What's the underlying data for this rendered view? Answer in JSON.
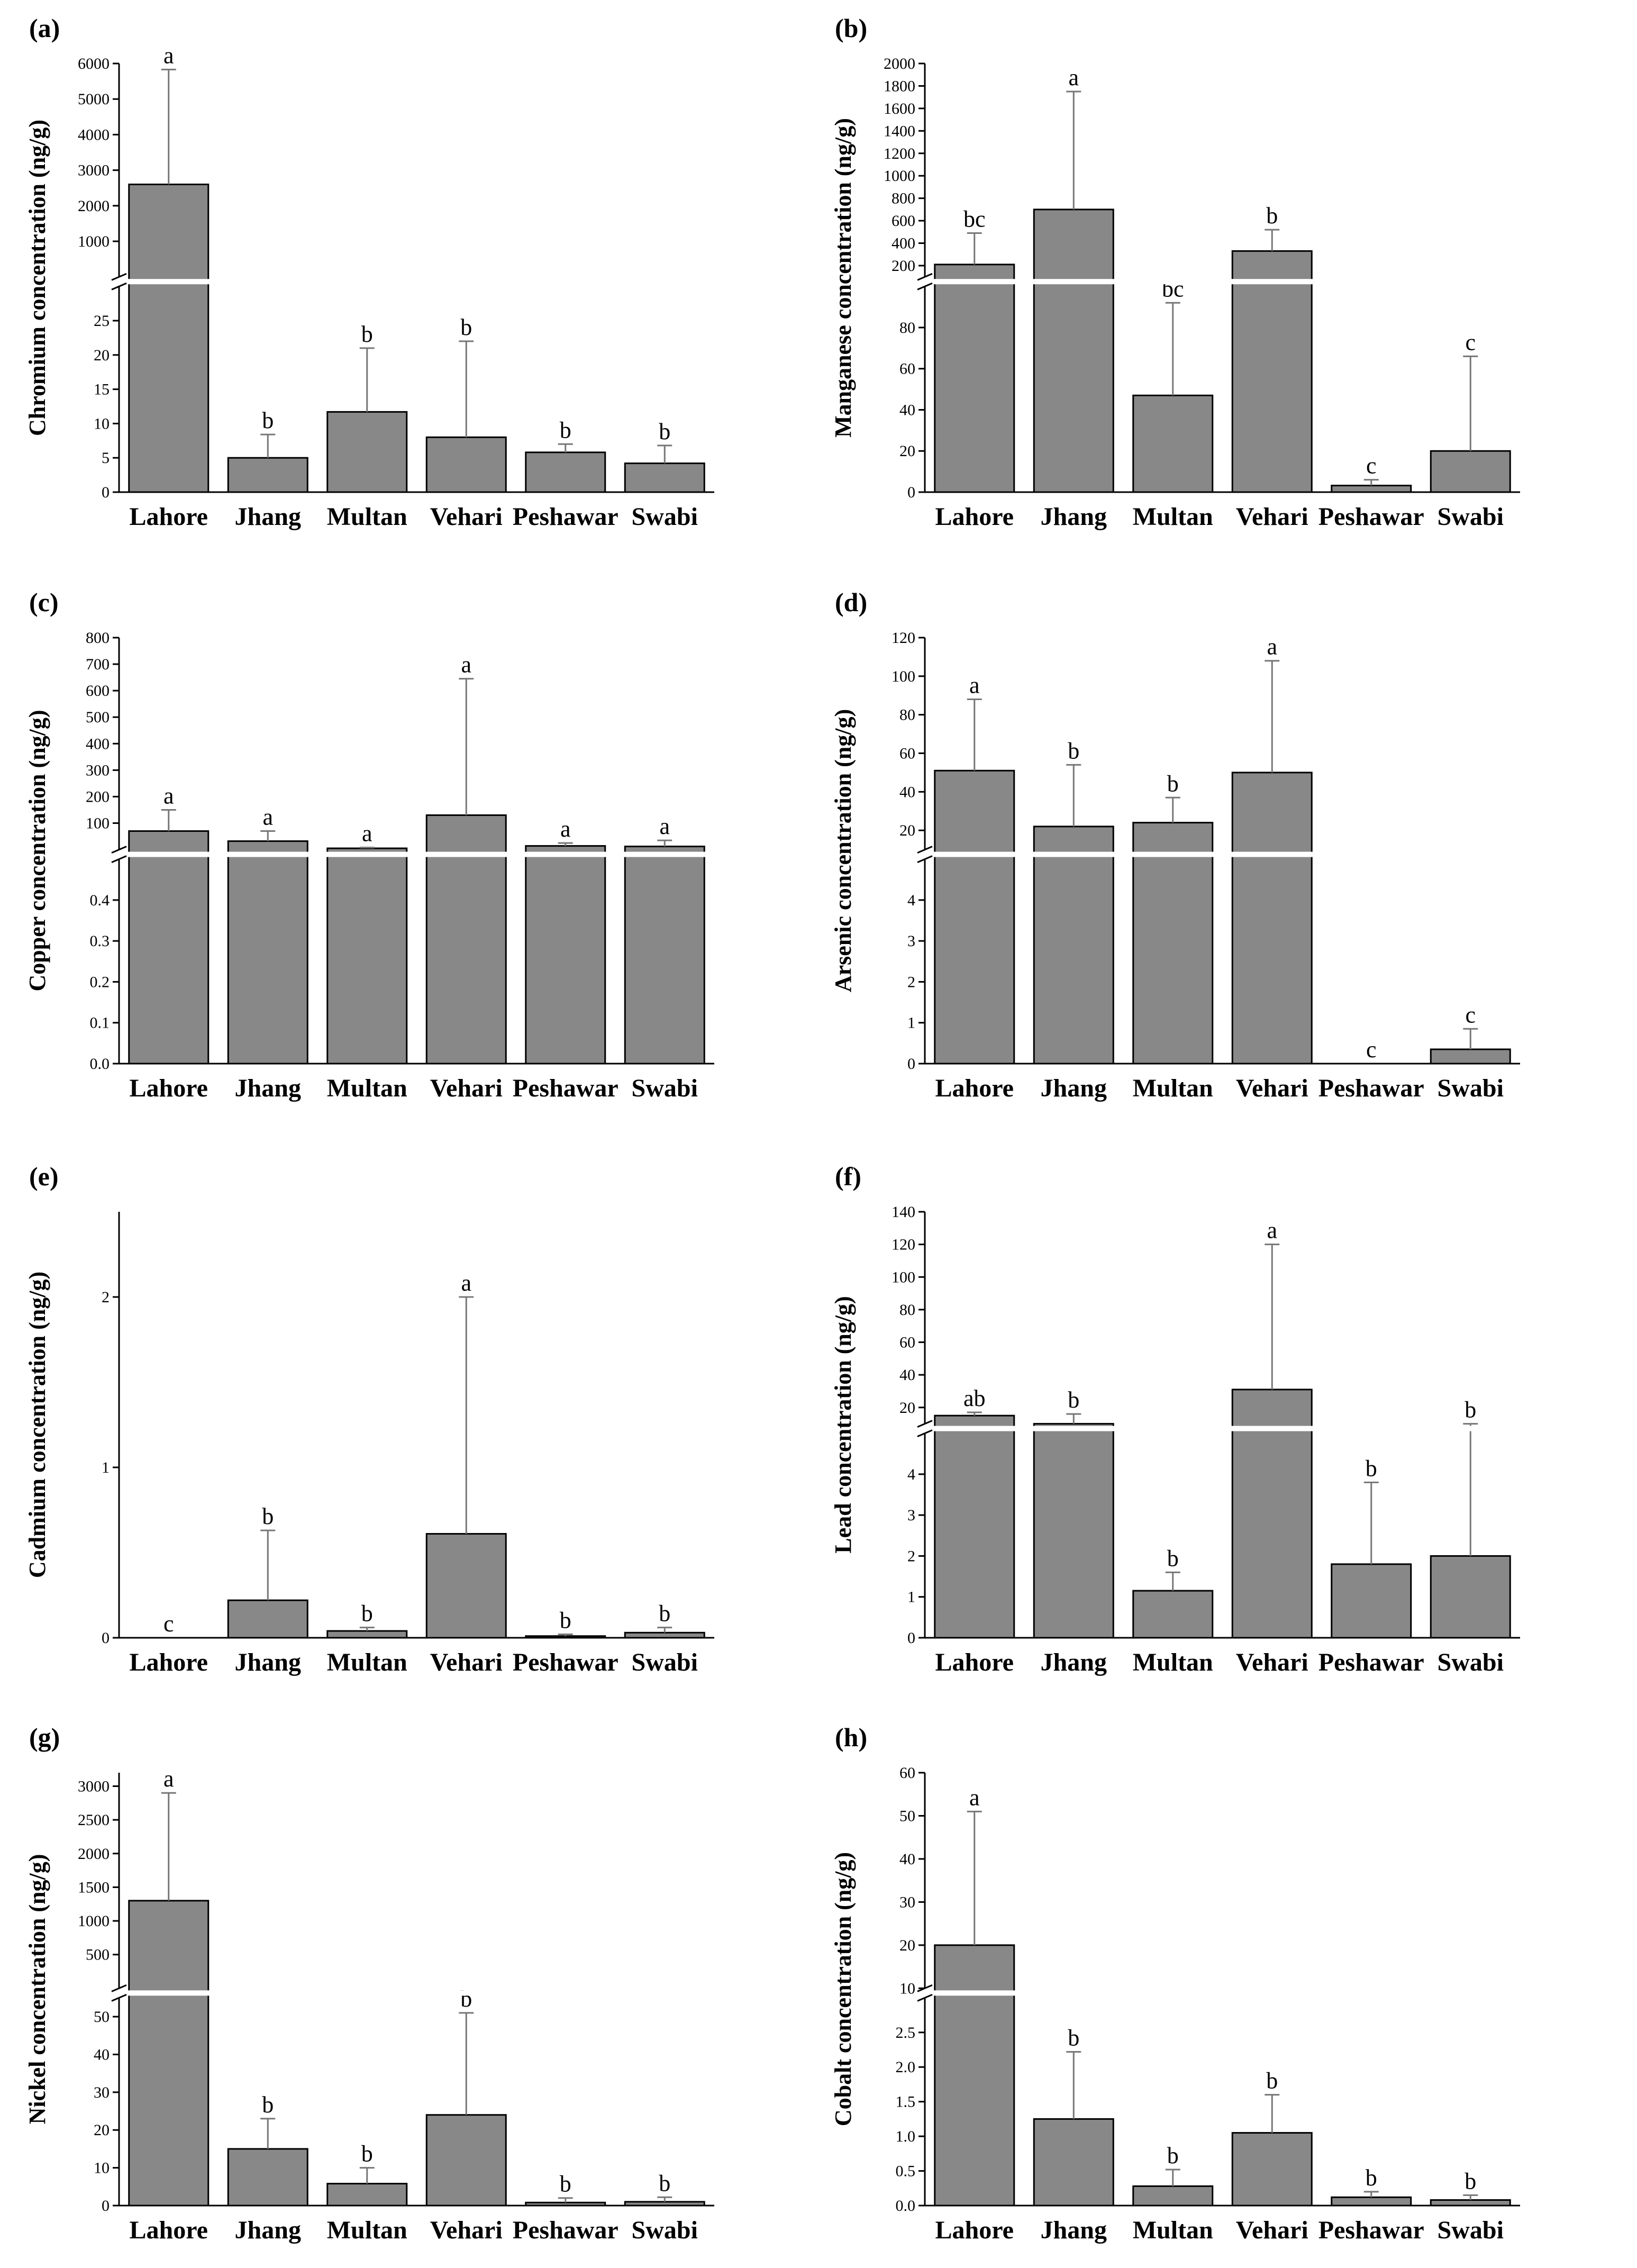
{
  "figure": {
    "categories": [
      "Lahore",
      "Jhang",
      "Multan",
      "Vehari",
      "Peshawar",
      "Swabi"
    ],
    "colors": {
      "bar": "#888888",
      "axis": "#000000",
      "error_bar": "#777777",
      "break_band": "#ffffff"
    }
  },
  "chart_data": [
    {
      "type": "bar",
      "panel_label": "(a)",
      "ylabel": "Chromium concentration (ng/g)",
      "categories": [
        "Lahore",
        "Jhang",
        "Multan",
        "Vehari",
        "Peshawar",
        "Swabi"
      ],
      "values": [
        2600,
        5,
        11.7,
        8,
        5.8,
        4.2
      ],
      "error": [
        5830,
        8.4,
        21,
        22,
        7,
        6.8
      ],
      "significance": [
        "a",
        "b",
        "b",
        "b",
        "b",
        "b"
      ],
      "axis_break": true,
      "lower_range": [
        0,
        30
      ],
      "lower_ticks": [
        0,
        5,
        10,
        15,
        20,
        25
      ],
      "upper_range": [
        0,
        6000
      ],
      "upper_ticks": [
        1000,
        2000,
        3000,
        4000,
        5000,
        6000
      ]
    },
    {
      "type": "bar",
      "panel_label": "(b)",
      "ylabel": "Manganese concentration (ng/g)",
      "categories": [
        "Lahore",
        "Jhang",
        "Multan",
        "Vehari",
        "Peshawar",
        "Swabi"
      ],
      "values": [
        210,
        700,
        47,
        330,
        3.2,
        20
      ],
      "error": [
        490,
        1750,
        92,
        520,
        6,
        66
      ],
      "significance": [
        "bc",
        "a",
        "bc",
        "b",
        "c",
        "c"
      ],
      "axis_break": true,
      "lower_range": [
        0,
        100
      ],
      "lower_ticks": [
        0,
        20,
        40,
        60,
        80
      ],
      "upper_range": [
        100,
        2000
      ],
      "upper_ticks": [
        200,
        400,
        600,
        800,
        1000,
        1200,
        1400,
        1600,
        1800,
        2000
      ]
    },
    {
      "type": "bar",
      "panel_label": "(c)",
      "ylabel": "Copper concentration (ng/g)",
      "categories": [
        "Lahore",
        "Jhang",
        "Multan",
        "Vehari",
        "Peshawar",
        "Swabi"
      ],
      "values": [
        70,
        32,
        5,
        130,
        14,
        12
      ],
      "error": [
        150,
        70,
        8,
        645,
        25,
        35
      ],
      "significance": [
        "a",
        "a",
        "a",
        "a",
        "a",
        "a"
      ],
      "axis_break": true,
      "lower_range": [
        0,
        0.5
      ],
      "lower_ticks": [
        0.0,
        0.1,
        0.2,
        0.3,
        0.4
      ],
      "upper_range": [
        0,
        800
      ],
      "upper_ticks": [
        100,
        200,
        300,
        400,
        500,
        600,
        700,
        800
      ]
    },
    {
      "type": "bar",
      "panel_label": "(d)",
      "ylabel": "Arsenic concentration (ng/g)",
      "categories": [
        "Lahore",
        "Jhang",
        "Multan",
        "Vehari",
        "Peshawar",
        "Swabi"
      ],
      "values": [
        51,
        22,
        24,
        50,
        0,
        0.35
      ],
      "error": [
        88,
        54,
        37,
        108,
        0,
        0.85
      ],
      "significance": [
        "a",
        "b",
        "b",
        "a",
        "c",
        "c"
      ],
      "axis_break": true,
      "lower_range": [
        0,
        5
      ],
      "lower_ticks": [
        0,
        1,
        2,
        3,
        4
      ],
      "upper_range": [
        10,
        120
      ],
      "upper_ticks": [
        20,
        40,
        60,
        80,
        100,
        120
      ]
    },
    {
      "type": "bar",
      "panel_label": "(e)",
      "ylabel": "Cadmium concentration (ng/g)",
      "categories": [
        "Lahore",
        "Jhang",
        "Multan",
        "Vehari",
        "Peshawar",
        "Swabi"
      ],
      "values": [
        0,
        0.22,
        0.04,
        0.61,
        0.01,
        0.03
      ],
      "error": [
        0,
        0.63,
        0.06,
        2.0,
        0.02,
        0.06
      ],
      "significance": [
        "c",
        "b",
        "b",
        "a",
        "b",
        "b"
      ],
      "axis_break": false,
      "range": [
        0,
        2.5
      ],
      "ticks": [
        0,
        1,
        2
      ]
    },
    {
      "type": "bar",
      "panel_label": "(f)",
      "ylabel": "Lead concentration (ng/g)",
      "categories": [
        "Lahore",
        "Jhang",
        "Multan",
        "Vehari",
        "Peshawar",
        "Swabi"
      ],
      "values": [
        15,
        10,
        1.15,
        31,
        1.8,
        2
      ],
      "error": [
        17,
        16,
        1.6,
        120,
        3.8,
        6
      ],
      "significance": [
        "ab",
        "b",
        "b",
        "a",
        "b",
        "b"
      ],
      "axis_break": true,
      "lower_range": [
        0,
        5
      ],
      "lower_ticks": [
        0,
        1,
        2,
        3,
        4
      ],
      "upper_range": [
        10,
        140
      ],
      "upper_ticks": [
        20,
        40,
        60,
        80,
        100,
        120,
        140
      ]
    },
    {
      "type": "bar",
      "panel_label": "(g)",
      "ylabel": "Nickel concentration (ng/g)",
      "categories": [
        "Lahore",
        "Jhang",
        "Multan",
        "Vehari",
        "Peshawar",
        "Swabi"
      ],
      "values": [
        1300,
        15,
        5.8,
        24,
        0.8,
        1
      ],
      "error": [
        2900,
        23,
        10,
        51,
        2,
        2.2
      ],
      "significance": [
        "a",
        "b",
        "b",
        "b",
        "b",
        "b"
      ],
      "axis_break": true,
      "lower_range": [
        0,
        55
      ],
      "lower_ticks": [
        0,
        10,
        20,
        30,
        40,
        50
      ],
      "upper_range": [
        0,
        3200
      ],
      "upper_ticks": [
        500,
        1000,
        1500,
        2000,
        2500,
        3000
      ]
    },
    {
      "type": "bar",
      "panel_label": "(h)",
      "ylabel": "Cobalt concentration (ng/g)",
      "categories": [
        "Lahore",
        "Jhang",
        "Multan",
        "Vehari",
        "Peshawar",
        "Swabi"
      ],
      "values": [
        20,
        1.25,
        0.28,
        1.05,
        0.12,
        0.08
      ],
      "error": [
        51,
        2.22,
        0.52,
        1.6,
        0.2,
        0.15
      ],
      "significance": [
        "a",
        "b",
        "b",
        "b",
        "b",
        "b"
      ],
      "axis_break": true,
      "lower_range": [
        0,
        3
      ],
      "lower_ticks": [
        0.0,
        0.5,
        1.0,
        1.5,
        2.0,
        2.5
      ],
      "upper_range": [
        10,
        60
      ],
      "upper_ticks": [
        10,
        20,
        30,
        40,
        50,
        60
      ]
    }
  ]
}
